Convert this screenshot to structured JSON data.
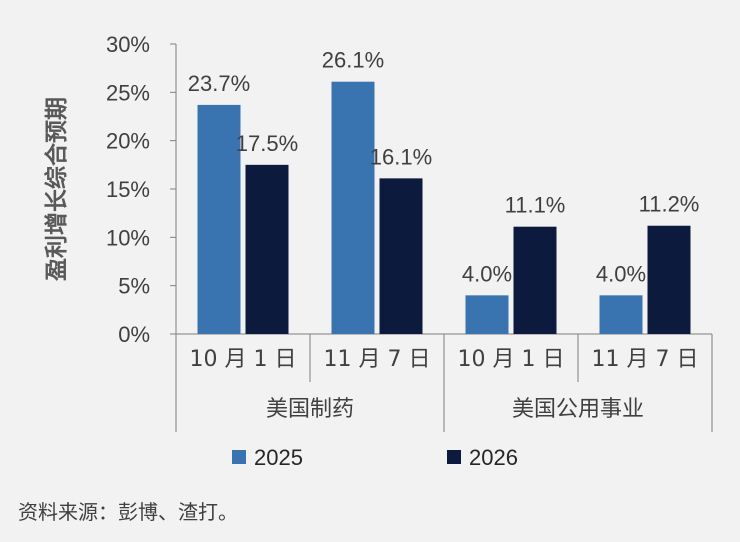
{
  "chart_data": {
    "type": "bar",
    "ylabel": "盈利增长综合预期",
    "ylim": [
      0,
      30
    ],
    "yticks": [
      "0%",
      "5%",
      "10%",
      "15%",
      "20%",
      "25%",
      "30%"
    ],
    "categories": [
      "10 月 1 日",
      "11 月 7 日",
      "10 月 1 日",
      "11 月 7 日"
    ],
    "groups": [
      {
        "label": "美国制药",
        "span": 2
      },
      {
        "label": "美国公用事业",
        "span": 2
      }
    ],
    "series": [
      {
        "name": "2025",
        "color": "#3a74b0",
        "values": [
          23.7,
          26.1,
          4.0,
          4.0
        ],
        "labels": [
          "23.7%",
          "26.1%",
          "4.0%",
          "4.0%"
        ]
      },
      {
        "name": "2026",
        "color": "#0c1a3d",
        "values": [
          17.5,
          16.1,
          11.1,
          11.2
        ],
        "labels": [
          "17.5%",
          "16.1%",
          "11.1%",
          "11.2%"
        ]
      }
    ],
    "legend": "bottom",
    "grid": false
  },
  "source": "资料来源：彭博、渣打。"
}
